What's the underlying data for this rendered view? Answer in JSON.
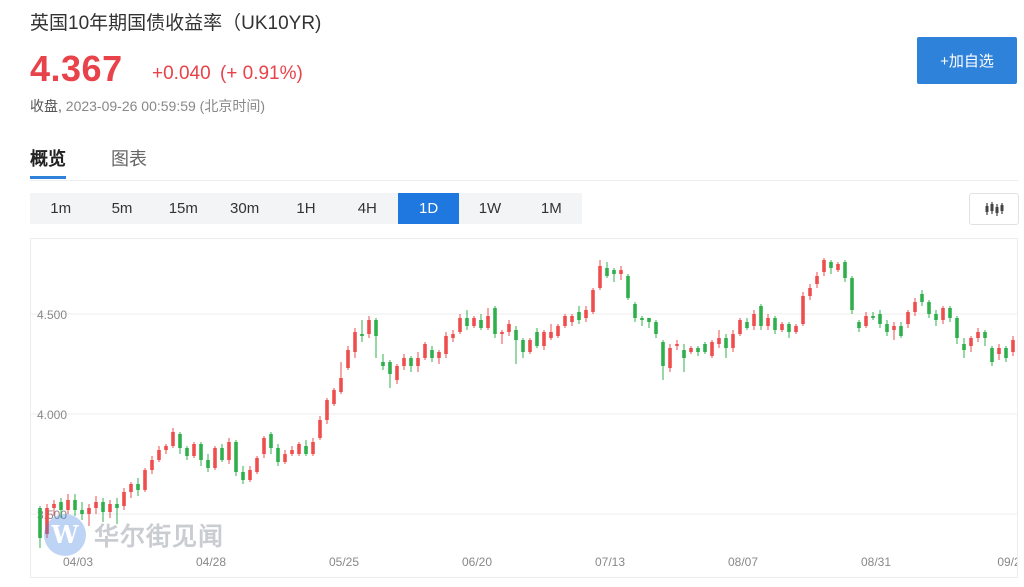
{
  "header": {
    "title": "英国10年期国债收益率（UK10YR)",
    "price": "4.367",
    "change": "+0.040",
    "change_pct": "(+ 0.91%)",
    "status": "收盘,",
    "timestamp": "2023-09-26 00:59:59 (北京时间)"
  },
  "actions": {
    "watchlist_label": "+加自选"
  },
  "tabs": [
    {
      "label": "概览"
    },
    {
      "label": "图表"
    }
  ],
  "periods": [
    {
      "label": "1m"
    },
    {
      "label": "5m"
    },
    {
      "label": "15m"
    },
    {
      "label": "30m"
    },
    {
      "label": "1H"
    },
    {
      "label": "4H"
    },
    {
      "label": "1D"
    },
    {
      "label": "1W"
    },
    {
      "label": "1M"
    }
  ],
  "active_period": "1D",
  "watermark": {
    "text": "华尔街见闻",
    "logo_letter": "W"
  },
  "colors": {
    "up": "#ee4e4e",
    "down": "#2fb04d",
    "accent": "#2f82da",
    "price": "#e8424a"
  },
  "icons": {
    "chart_type": "candlestick-icon"
  },
  "chart_data": {
    "type": "candlestick",
    "title": "",
    "xlabel": "",
    "ylabel": "",
    "yticks": [
      "3.500",
      "4.000",
      "4.500"
    ],
    "ylim": [
      3.3,
      4.85
    ],
    "x_tick_labels": [
      "04/03",
      "04/28",
      "05/25",
      "06/20",
      "07/13",
      "08/07",
      "08/31",
      "09/2"
    ],
    "grid": true,
    "candles": [
      {
        "o": 3.53,
        "c": 3.38,
        "h": 3.54,
        "l": 3.33
      },
      {
        "o": 3.4,
        "c": 3.53,
        "h": 3.55,
        "l": 3.38
      },
      {
        "o": 3.53,
        "c": 3.55,
        "h": 3.57,
        "l": 3.49
      },
      {
        "o": 3.56,
        "c": 3.52,
        "h": 3.58,
        "l": 3.48
      },
      {
        "o": 3.52,
        "c": 3.57,
        "h": 3.6,
        "l": 3.5
      },
      {
        "o": 3.57,
        "c": 3.52,
        "h": 3.6,
        "l": 3.49
      },
      {
        "o": 3.52,
        "c": 3.5,
        "h": 3.56,
        "l": 3.47
      },
      {
        "o": 3.5,
        "c": 3.53,
        "h": 3.55,
        "l": 3.44
      },
      {
        "o": 3.53,
        "c": 3.56,
        "h": 3.59,
        "l": 3.5
      },
      {
        "o": 3.56,
        "c": 3.51,
        "h": 3.58,
        "l": 3.46
      },
      {
        "o": 3.51,
        "c": 3.55,
        "h": 3.57,
        "l": 3.48
      },
      {
        "o": 3.55,
        "c": 3.53,
        "h": 3.58,
        "l": 3.45
      },
      {
        "o": 3.54,
        "c": 3.61,
        "h": 3.63,
        "l": 3.52
      },
      {
        "o": 3.61,
        "c": 3.65,
        "h": 3.66,
        "l": 3.58
      },
      {
        "o": 3.65,
        "c": 3.62,
        "h": 3.68,
        "l": 3.59
      },
      {
        "o": 3.62,
        "c": 3.72,
        "h": 3.73,
        "l": 3.61
      },
      {
        "o": 3.72,
        "c": 3.77,
        "h": 3.79,
        "l": 3.7
      },
      {
        "o": 3.77,
        "c": 3.82,
        "h": 3.84,
        "l": 3.76
      },
      {
        "o": 3.82,
        "c": 3.84,
        "h": 3.85,
        "l": 3.8
      },
      {
        "o": 3.84,
        "c": 3.91,
        "h": 3.93,
        "l": 3.83
      },
      {
        "o": 3.9,
        "c": 3.83,
        "h": 3.91,
        "l": 3.8
      },
      {
        "o": 3.83,
        "c": 3.79,
        "h": 3.84,
        "l": 3.77
      },
      {
        "o": 3.79,
        "c": 3.85,
        "h": 3.86,
        "l": 3.78
      },
      {
        "o": 3.85,
        "c": 3.77,
        "h": 3.86,
        "l": 3.74
      },
      {
        "o": 3.77,
        "c": 3.73,
        "h": 3.8,
        "l": 3.71
      },
      {
        "o": 3.73,
        "c": 3.83,
        "h": 3.84,
        "l": 3.72
      },
      {
        "o": 3.83,
        "c": 3.77,
        "h": 3.85,
        "l": 3.76
      },
      {
        "o": 3.77,
        "c": 3.86,
        "h": 3.88,
        "l": 3.75
      },
      {
        "o": 3.86,
        "c": 3.71,
        "h": 3.87,
        "l": 3.69
      },
      {
        "o": 3.71,
        "c": 3.67,
        "h": 3.74,
        "l": 3.65
      },
      {
        "o": 3.67,
        "c": 3.72,
        "h": 3.74,
        "l": 3.66
      },
      {
        "o": 3.71,
        "c": 3.78,
        "h": 3.79,
        "l": 3.7
      },
      {
        "o": 3.8,
        "c": 3.88,
        "h": 3.89,
        "l": 3.78
      },
      {
        "o": 3.9,
        "c": 3.83,
        "h": 3.91,
        "l": 3.8
      },
      {
        "o": 3.83,
        "c": 3.76,
        "h": 3.85,
        "l": 3.74
      },
      {
        "o": 3.76,
        "c": 3.8,
        "h": 3.82,
        "l": 3.75
      },
      {
        "o": 3.8,
        "c": 3.82,
        "h": 3.84,
        "l": 3.79
      },
      {
        "o": 3.8,
        "c": 3.85,
        "h": 3.86,
        "l": 3.79
      },
      {
        "o": 3.84,
        "c": 3.8,
        "h": 3.87,
        "l": 3.79
      },
      {
        "o": 3.8,
        "c": 3.86,
        "h": 3.88,
        "l": 3.79
      },
      {
        "o": 3.88,
        "c": 3.97,
        "h": 3.99,
        "l": 3.87
      },
      {
        "o": 3.97,
        "c": 4.07,
        "h": 4.08,
        "l": 3.95
      },
      {
        "o": 4.05,
        "c": 4.12,
        "h": 4.13,
        "l": 4.04
      },
      {
        "o": 4.11,
        "c": 4.18,
        "h": 4.26,
        "l": 4.1
      },
      {
        "o": 4.23,
        "c": 4.32,
        "h": 4.34,
        "l": 4.22
      },
      {
        "o": 4.31,
        "c": 4.41,
        "h": 4.43,
        "l": 4.28
      },
      {
        "o": 4.4,
        "c": 4.39,
        "h": 4.47,
        "l": 4.36
      },
      {
        "o": 4.4,
        "c": 4.47,
        "h": 4.49,
        "l": 4.38
      },
      {
        "o": 4.47,
        "c": 4.39,
        "h": 4.48,
        "l": 4.28
      },
      {
        "o": 4.26,
        "c": 4.24,
        "h": 4.3,
        "l": 4.22
      },
      {
        "o": 4.26,
        "c": 4.2,
        "h": 4.27,
        "l": 4.13
      },
      {
        "o": 4.17,
        "c": 4.24,
        "h": 4.25,
        "l": 4.15
      },
      {
        "o": 4.24,
        "c": 4.28,
        "h": 4.3,
        "l": 4.22
      },
      {
        "o": 4.28,
        "c": 4.24,
        "h": 4.29,
        "l": 4.21
      },
      {
        "o": 4.24,
        "c": 4.28,
        "h": 4.31,
        "l": 4.21
      },
      {
        "o": 4.28,
        "c": 4.35,
        "h": 4.36,
        "l": 4.27
      },
      {
        "o": 4.32,
        "c": 4.28,
        "h": 4.34,
        "l": 4.26
      },
      {
        "o": 4.28,
        "c": 4.31,
        "h": 4.32,
        "l": 4.25
      },
      {
        "o": 4.3,
        "c": 4.39,
        "h": 4.41,
        "l": 4.28
      },
      {
        "o": 4.38,
        "c": 4.4,
        "h": 4.42,
        "l": 4.36
      },
      {
        "o": 4.41,
        "c": 4.48,
        "h": 4.5,
        "l": 4.4
      },
      {
        "o": 4.48,
        "c": 4.44,
        "h": 4.52,
        "l": 4.42
      },
      {
        "o": 4.44,
        "c": 4.48,
        "h": 4.49,
        "l": 4.43
      },
      {
        "o": 4.47,
        "c": 4.43,
        "h": 4.5,
        "l": 4.42
      },
      {
        "o": 4.43,
        "c": 4.49,
        "h": 4.53,
        "l": 4.42
      },
      {
        "o": 4.53,
        "c": 4.4,
        "h": 4.54,
        "l": 4.38
      },
      {
        "o": 4.4,
        "c": 4.41,
        "h": 4.42,
        "l": 4.35
      },
      {
        "o": 4.41,
        "c": 4.45,
        "h": 4.47,
        "l": 4.39
      },
      {
        "o": 4.42,
        "c": 4.37,
        "h": 4.44,
        "l": 4.25
      },
      {
        "o": 4.37,
        "c": 4.31,
        "h": 4.38,
        "l": 4.28
      },
      {
        "o": 4.31,
        "c": 4.37,
        "h": 4.38,
        "l": 4.3
      },
      {
        "o": 4.41,
        "c": 4.34,
        "h": 4.43,
        "l": 4.33
      },
      {
        "o": 4.34,
        "c": 4.41,
        "h": 4.42,
        "l": 4.32
      },
      {
        "o": 4.38,
        "c": 4.41,
        "h": 4.45,
        "l": 4.37
      },
      {
        "o": 4.39,
        "c": 4.44,
        "h": 4.45,
        "l": 4.38
      },
      {
        "o": 4.44,
        "c": 4.49,
        "h": 4.5,
        "l": 4.43
      },
      {
        "o": 4.46,
        "c": 4.49,
        "h": 4.5,
        "l": 4.44
      },
      {
        "o": 4.51,
        "c": 4.47,
        "h": 4.54,
        "l": 4.45
      },
      {
        "o": 4.48,
        "c": 4.52,
        "h": 4.54,
        "l": 4.46
      },
      {
        "o": 4.51,
        "c": 4.62,
        "h": 4.63,
        "l": 4.5
      },
      {
        "o": 4.63,
        "c": 4.74,
        "h": 4.77,
        "l": 4.62
      },
      {
        "o": 4.73,
        "c": 4.69,
        "h": 4.76,
        "l": 4.68
      },
      {
        "o": 4.72,
        "c": 4.7,
        "h": 4.73,
        "l": 4.66
      },
      {
        "o": 4.7,
        "c": 4.72,
        "h": 4.74,
        "l": 4.67
      },
      {
        "o": 4.69,
        "c": 4.58,
        "h": 4.7,
        "l": 4.57
      },
      {
        "o": 4.55,
        "c": 4.48,
        "h": 4.56,
        "l": 4.46
      },
      {
        "o": 4.48,
        "c": 4.47,
        "h": 4.49,
        "l": 4.44
      },
      {
        "o": 4.48,
        "c": 4.46,
        "h": 4.48,
        "l": 4.43
      },
      {
        "o": 4.46,
        "c": 4.4,
        "h": 4.47,
        "l": 4.38
      },
      {
        "o": 4.36,
        "c": 4.24,
        "h": 4.37,
        "l": 4.17
      },
      {
        "o": 4.23,
        "c": 4.33,
        "h": 4.35,
        "l": 4.21
      },
      {
        "o": 4.34,
        "c": 4.35,
        "h": 4.37,
        "l": 4.32
      },
      {
        "o": 4.32,
        "c": 4.28,
        "h": 4.35,
        "l": 4.21
      },
      {
        "o": 4.31,
        "c": 4.33,
        "h": 4.34,
        "l": 4.3
      },
      {
        "o": 4.33,
        "c": 4.31,
        "h": 4.34,
        "l": 4.29
      },
      {
        "o": 4.35,
        "c": 4.31,
        "h": 4.36,
        "l": 4.3
      },
      {
        "o": 4.29,
        "c": 4.36,
        "h": 4.37,
        "l": 4.28
      },
      {
        "o": 4.35,
        "c": 4.38,
        "h": 4.42,
        "l": 4.33
      },
      {
        "o": 4.38,
        "c": 4.33,
        "h": 4.4,
        "l": 4.28
      },
      {
        "o": 4.33,
        "c": 4.4,
        "h": 4.42,
        "l": 4.31
      },
      {
        "o": 4.4,
        "c": 4.47,
        "h": 4.48,
        "l": 4.39
      },
      {
        "o": 4.46,
        "c": 4.43,
        "h": 4.48,
        "l": 4.42
      },
      {
        "o": 4.44,
        "c": 4.5,
        "h": 4.52,
        "l": 4.42
      },
      {
        "o": 4.54,
        "c": 4.44,
        "h": 4.55,
        "l": 4.42
      },
      {
        "o": 4.44,
        "c": 4.48,
        "h": 4.5,
        "l": 4.42
      },
      {
        "o": 4.48,
        "c": 4.42,
        "h": 4.49,
        "l": 4.4
      },
      {
        "o": 4.42,
        "c": 4.45,
        "h": 4.46,
        "l": 4.41
      },
      {
        "o": 4.45,
        "c": 4.41,
        "h": 4.46,
        "l": 4.38
      },
      {
        "o": 4.41,
        "c": 4.44,
        "h": 4.45,
        "l": 4.4
      },
      {
        "o": 4.45,
        "c": 4.59,
        "h": 4.61,
        "l": 4.44
      },
      {
        "o": 4.59,
        "c": 4.63,
        "h": 4.65,
        "l": 4.57
      },
      {
        "o": 4.65,
        "c": 4.69,
        "h": 4.71,
        "l": 4.63
      },
      {
        "o": 4.71,
        "c": 4.77,
        "h": 4.78,
        "l": 4.69
      },
      {
        "o": 4.76,
        "c": 4.73,
        "h": 4.77,
        "l": 4.7
      },
      {
        "o": 4.72,
        "c": 4.75,
        "h": 4.76,
        "l": 4.71
      },
      {
        "o": 4.76,
        "c": 4.68,
        "h": 4.77,
        "l": 4.66
      },
      {
        "o": 4.68,
        "c": 4.52,
        "h": 4.69,
        "l": 4.5
      },
      {
        "o": 4.46,
        "c": 4.43,
        "h": 4.47,
        "l": 4.41
      },
      {
        "o": 4.44,
        "c": 4.49,
        "h": 4.51,
        "l": 4.43
      },
      {
        "o": 4.49,
        "c": 4.48,
        "h": 4.51,
        "l": 4.47
      },
      {
        "o": 4.5,
        "c": 4.45,
        "h": 4.52,
        "l": 4.43
      },
      {
        "o": 4.45,
        "c": 4.41,
        "h": 4.47,
        "l": 4.39
      },
      {
        "o": 4.42,
        "c": 4.44,
        "h": 4.46,
        "l": 4.37
      },
      {
        "o": 4.44,
        "c": 4.39,
        "h": 4.46,
        "l": 4.38
      },
      {
        "o": 4.45,
        "c": 4.51,
        "h": 4.52,
        "l": 4.43
      },
      {
        "o": 4.51,
        "c": 4.56,
        "h": 4.58,
        "l": 4.49
      },
      {
        "o": 4.6,
        "c": 4.56,
        "h": 4.62,
        "l": 4.54
      },
      {
        "o": 4.56,
        "c": 4.5,
        "h": 4.57,
        "l": 4.48
      },
      {
        "o": 4.5,
        "c": 4.47,
        "h": 4.52,
        "l": 4.44
      },
      {
        "o": 4.47,
        "c": 4.53,
        "h": 4.54,
        "l": 4.45
      },
      {
        "o": 4.53,
        "c": 4.48,
        "h": 4.54,
        "l": 4.46
      },
      {
        "o": 4.48,
        "c": 4.38,
        "h": 4.49,
        "l": 4.35
      },
      {
        "o": 4.35,
        "c": 4.32,
        "h": 4.38,
        "l": 4.28
      },
      {
        "o": 4.34,
        "c": 4.38,
        "h": 4.39,
        "l": 4.31
      },
      {
        "o": 4.38,
        "c": 4.41,
        "h": 4.43,
        "l": 4.36
      },
      {
        "o": 4.41,
        "c": 4.38,
        "h": 4.42,
        "l": 4.34
      },
      {
        "o": 4.33,
        "c": 4.26,
        "h": 4.34,
        "l": 4.24
      },
      {
        "o": 4.3,
        "c": 4.33,
        "h": 4.35,
        "l": 4.27
      },
      {
        "o": 4.33,
        "c": 4.28,
        "h": 4.34,
        "l": 4.26
      },
      {
        "o": 4.31,
        "c": 4.37,
        "h": 4.39,
        "l": 4.29
      }
    ]
  }
}
